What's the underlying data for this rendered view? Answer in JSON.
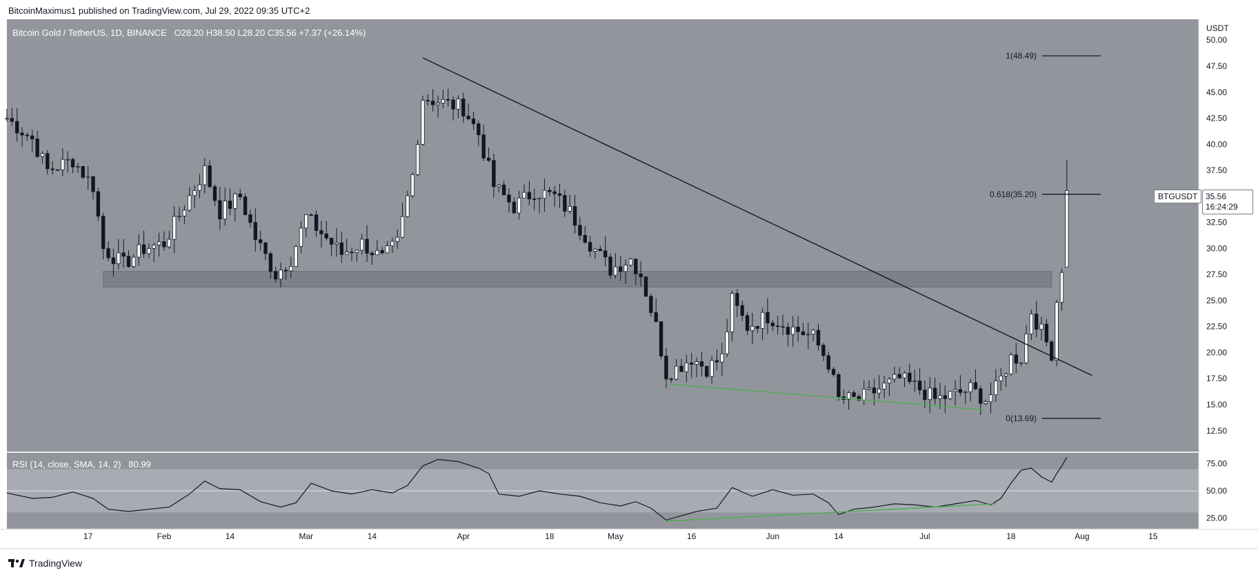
{
  "header": {
    "published_by": "BitcoinMaximus1 published on TradingView.com, Jul 29, 2022 09:35 UTC+2"
  },
  "legend": {
    "symbol": "Bitcoin Gold / TetherUS, 1D, BINANCE",
    "open_label": "O",
    "open": "28.20",
    "high_label": "H",
    "high": "38.50",
    "low_label": "L",
    "low": "28.20",
    "close_label": "C",
    "close": "35.56",
    "change": "+7.37 (+26.14%)"
  },
  "rsi_legend": {
    "label": "RSI (14, close, SMA, 14, 2)",
    "value": "80.99"
  },
  "price_scale": {
    "currency": "USDT",
    "ticks": [
      "50.00",
      "47.50",
      "45.00",
      "42.50",
      "40.00",
      "37.50",
      "35.00",
      "32.50",
      "30.00",
      "27.50",
      "25.00",
      "22.50",
      "20.00",
      "17.50",
      "15.00",
      "12.50"
    ]
  },
  "rsi_scale": {
    "ticks": [
      "75.00",
      "50.00",
      "25.00"
    ]
  },
  "time_axis": {
    "labels": [
      "17",
      "Feb",
      "14",
      "Mar",
      "14",
      "Apr",
      "18",
      "May",
      "16",
      "Jun",
      "14",
      "Jul",
      "18",
      "Aug",
      "15"
    ]
  },
  "badges": {
    "symbol": "BTGUSDT",
    "price": "35.56",
    "countdown": "16:24:29"
  },
  "fib": {
    "level_1": "1(48.49)",
    "level_0618": "0.618(35.20)",
    "level_0": "0(13.69)"
  },
  "footer": {
    "brand": "TradingView"
  },
  "colors": {
    "main_bg": "#93959d",
    "rsi_bg": "#93959d",
    "rsi_band": "#a9abb2",
    "support_zone": "#7f8188",
    "candle_up": "#ffffff",
    "candle_down": "#131722",
    "divergence": "#4caf50",
    "trendline": "#131722"
  },
  "chart_data": [
    {
      "type": "candlestick",
      "title": "Bitcoin Gold / TetherUS, 1D, BINANCE",
      "y_unit": "USDT",
      "ylim": [
        10.5,
        52.0
      ],
      "x_range": [
        "2022-01-01",
        "2022-08-24"
      ],
      "close_path": [
        {
          "date": "2022-01-01",
          "close": 42.5
        },
        {
          "date": "2022-01-06",
          "close": 40.5
        },
        {
          "date": "2022-01-09",
          "close": 37.5
        },
        {
          "date": "2022-01-14",
          "close": 38.5
        },
        {
          "date": "2022-01-18",
          "close": 36.0
        },
        {
          "date": "2022-01-20",
          "close": 30.0
        },
        {
          "date": "2022-01-24",
          "close": 28.5
        },
        {
          "date": "2022-01-28",
          "close": 30.0
        },
        {
          "date": "2022-02-01",
          "close": 30.5
        },
        {
          "date": "2022-02-06",
          "close": 35.0
        },
        {
          "date": "2022-02-09",
          "close": 37.5
        },
        {
          "date": "2022-02-12",
          "close": 33.5
        },
        {
          "date": "2022-02-16",
          "close": 35.0
        },
        {
          "date": "2022-02-19",
          "close": 31.0
        },
        {
          "date": "2022-02-23",
          "close": 27.5
        },
        {
          "date": "2022-02-26",
          "close": 29.0
        },
        {
          "date": "2022-03-01",
          "close": 33.0
        },
        {
          "date": "2022-03-05",
          "close": 31.0
        },
        {
          "date": "2022-03-08",
          "close": 29.5
        },
        {
          "date": "2022-03-12",
          "close": 30.5
        },
        {
          "date": "2022-03-16",
          "close": 29.0
        },
        {
          "date": "2022-03-19",
          "close": 30.5
        },
        {
          "date": "2022-03-22",
          "close": 37.0
        },
        {
          "date": "2022-03-24",
          "close": 44.5
        },
        {
          "date": "2022-03-28",
          "close": 44.0
        },
        {
          "date": "2022-04-01",
          "close": 43.5
        },
        {
          "date": "2022-04-04",
          "close": 41.0
        },
        {
          "date": "2022-04-07",
          "close": 36.0
        },
        {
          "date": "2022-04-11",
          "close": 34.0
        },
        {
          "date": "2022-04-15",
          "close": 35.5
        },
        {
          "date": "2022-04-19",
          "close": 35.0
        },
        {
          "date": "2022-04-22",
          "close": 33.5
        },
        {
          "date": "2022-04-26",
          "close": 30.5
        },
        {
          "date": "2022-04-30",
          "close": 28.0
        },
        {
          "date": "2022-05-04",
          "close": 29.0
        },
        {
          "date": "2022-05-06",
          "close": 27.5
        },
        {
          "date": "2022-05-09",
          "close": 22.5
        },
        {
          "date": "2022-05-11",
          "close": 18.0
        },
        {
          "date": "2022-05-13",
          "close": 18.5
        },
        {
          "date": "2022-05-16",
          "close": 19.5
        },
        {
          "date": "2022-05-19",
          "close": 18.5
        },
        {
          "date": "2022-05-22",
          "close": 19.5
        },
        {
          "date": "2022-05-24",
          "close": 25.0
        },
        {
          "date": "2022-05-27",
          "close": 22.5
        },
        {
          "date": "2022-05-31",
          "close": 23.5
        },
        {
          "date": "2022-06-04",
          "close": 22.5
        },
        {
          "date": "2022-06-09",
          "close": 21.5
        },
        {
          "date": "2022-06-12",
          "close": 19.0
        },
        {
          "date": "2022-06-14",
          "close": 15.5
        },
        {
          "date": "2022-06-18",
          "close": 15.5
        },
        {
          "date": "2022-06-22",
          "close": 16.5
        },
        {
          "date": "2022-06-26",
          "close": 17.5
        },
        {
          "date": "2022-06-30",
          "close": 16.5
        },
        {
          "date": "2022-07-03",
          "close": 15.5
        },
        {
          "date": "2022-07-07",
          "close": 16.0
        },
        {
          "date": "2022-07-10",
          "close": 16.5
        },
        {
          "date": "2022-07-13",
          "close": 15.5
        },
        {
          "date": "2022-07-15",
          "close": 16.5
        },
        {
          "date": "2022-07-18",
          "close": 19.5
        },
        {
          "date": "2022-07-20",
          "close": 19.5
        },
        {
          "date": "2022-07-22",
          "close": 24.0
        },
        {
          "date": "2022-07-24",
          "close": 22.0
        },
        {
          "date": "2022-07-26",
          "close": 20.0
        },
        {
          "date": "2022-07-27",
          "close": 25.0
        },
        {
          "date": "2022-07-28",
          "close": 28.2
        },
        {
          "date": "2022-07-29",
          "close": 35.56
        }
      ],
      "last_candle": {
        "date": "2022-07-29",
        "open": 28.2,
        "high": 38.5,
        "low": 28.2,
        "close": 35.56
      },
      "support_zone": [
        26.3,
        27.8
      ],
      "trendline": [
        {
          "date": "2022-03-24",
          "y": 48.3
        },
        {
          "date": "2022-08-03",
          "y": 17.8
        }
      ],
      "divergence_line_price": [
        {
          "date": "2022-05-11",
          "y": 17.0
        },
        {
          "date": "2022-07-13",
          "y": 14.5
        }
      ],
      "fib_levels": [
        {
          "ratio": "1",
          "value": 48.49
        },
        {
          "ratio": "0.618",
          "value": 35.2
        },
        {
          "ratio": "0",
          "value": 13.69
        }
      ]
    },
    {
      "type": "line",
      "title": "RSI (14, close, SMA, 14, 2)",
      "ylim": [
        15,
        85
      ],
      "band": [
        30,
        70
      ],
      "midline": 50,
      "series": [
        {
          "name": "RSI (14, close, SMA, 14, 2)",
          "points": [
            {
              "date": "2022-01-01",
              "value": 48
            },
            {
              "date": "2022-01-06",
              "value": 43
            },
            {
              "date": "2022-01-10",
              "value": 44
            },
            {
              "date": "2022-01-14",
              "value": 49
            },
            {
              "date": "2022-01-18",
              "value": 43
            },
            {
              "date": "2022-01-21",
              "value": 33
            },
            {
              "date": "2022-01-25",
              "value": 31
            },
            {
              "date": "2022-01-29",
              "value": 33
            },
            {
              "date": "2022-02-02",
              "value": 35
            },
            {
              "date": "2022-02-06",
              "value": 47
            },
            {
              "date": "2022-02-09",
              "value": 59
            },
            {
              "date": "2022-02-12",
              "value": 52
            },
            {
              "date": "2022-02-16",
              "value": 51
            },
            {
              "date": "2022-02-20",
              "value": 40
            },
            {
              "date": "2022-02-24",
              "value": 35
            },
            {
              "date": "2022-02-27",
              "value": 39
            },
            {
              "date": "2022-03-02",
              "value": 57
            },
            {
              "date": "2022-03-06",
              "value": 50
            },
            {
              "date": "2022-03-10",
              "value": 47
            },
            {
              "date": "2022-03-14",
              "value": 51
            },
            {
              "date": "2022-03-18",
              "value": 48
            },
            {
              "date": "2022-03-21",
              "value": 55
            },
            {
              "date": "2022-03-24",
              "value": 73
            },
            {
              "date": "2022-03-27",
              "value": 79
            },
            {
              "date": "2022-03-31",
              "value": 77
            },
            {
              "date": "2022-04-04",
              "value": 71
            },
            {
              "date": "2022-04-06",
              "value": 66
            },
            {
              "date": "2022-04-08",
              "value": 47
            },
            {
              "date": "2022-04-12",
              "value": 45
            },
            {
              "date": "2022-04-16",
              "value": 50
            },
            {
              "date": "2022-04-20",
              "value": 47
            },
            {
              "date": "2022-04-24",
              "value": 45
            },
            {
              "date": "2022-04-28",
              "value": 39
            },
            {
              "date": "2022-05-02",
              "value": 36
            },
            {
              "date": "2022-05-05",
              "value": 40
            },
            {
              "date": "2022-05-08",
              "value": 34
            },
            {
              "date": "2022-05-11",
              "value": 23
            },
            {
              "date": "2022-05-14",
              "value": 27
            },
            {
              "date": "2022-05-17",
              "value": 31
            },
            {
              "date": "2022-05-21",
              "value": 34
            },
            {
              "date": "2022-05-24",
              "value": 53
            },
            {
              "date": "2022-05-28",
              "value": 45
            },
            {
              "date": "2022-06-01",
              "value": 51
            },
            {
              "date": "2022-06-05",
              "value": 46
            },
            {
              "date": "2022-06-09",
              "value": 47
            },
            {
              "date": "2022-06-12",
              "value": 39
            },
            {
              "date": "2022-06-14",
              "value": 28
            },
            {
              "date": "2022-06-17",
              "value": 33
            },
            {
              "date": "2022-06-21",
              "value": 35
            },
            {
              "date": "2022-06-25",
              "value": 38
            },
            {
              "date": "2022-06-29",
              "value": 37
            },
            {
              "date": "2022-07-03",
              "value": 35
            },
            {
              "date": "2022-07-07",
              "value": 38
            },
            {
              "date": "2022-07-11",
              "value": 41
            },
            {
              "date": "2022-07-14",
              "value": 37
            },
            {
              "date": "2022-07-16",
              "value": 43
            },
            {
              "date": "2022-07-18",
              "value": 57
            },
            {
              "date": "2022-07-20",
              "value": 69
            },
            {
              "date": "2022-07-22",
              "value": 71
            },
            {
              "date": "2022-07-24",
              "value": 63
            },
            {
              "date": "2022-07-26",
              "value": 58
            },
            {
              "date": "2022-07-27",
              "value": 66
            },
            {
              "date": "2022-07-28",
              "value": 73
            },
            {
              "date": "2022-07-29",
              "value": 80.99
            }
          ]
        }
      ],
      "divergence_line_rsi": [
        {
          "date": "2022-05-11",
          "value": 22
        },
        {
          "date": "2022-07-15",
          "value": 38
        }
      ]
    }
  ]
}
